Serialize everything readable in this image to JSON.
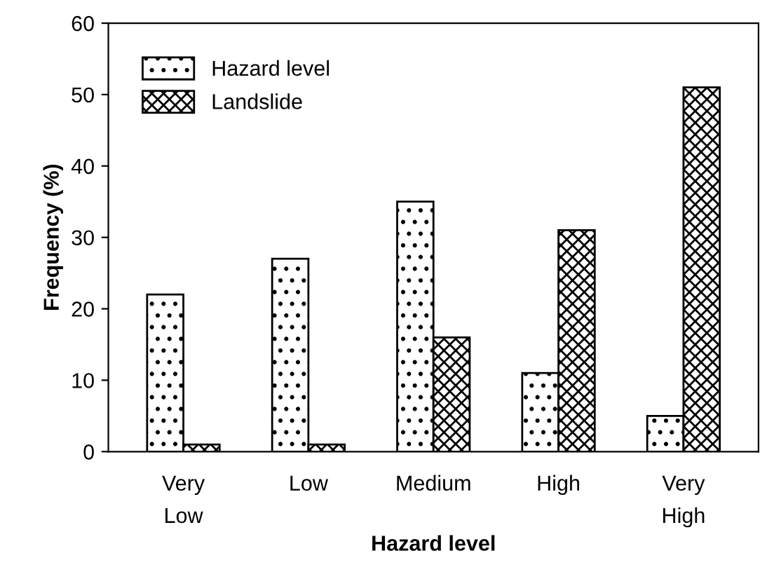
{
  "chart_data": {
    "type": "bar",
    "xlabel": "Hazard level",
    "ylabel": "Frequency (%)",
    "categories": [
      "Very\nLow",
      "Low",
      "Medium",
      "High",
      "Very\nHigh"
    ],
    "series": [
      {
        "name": "Hazard level",
        "color": "#000000",
        "values": [
          22,
          27,
          35,
          11,
          5
        ]
      },
      {
        "name": "Landslide",
        "color": "#000000",
        "values": [
          1,
          1,
          16,
          31,
          51
        ]
      }
    ],
    "ylim": [
      0,
      60
    ],
    "yticks": [
      0,
      10,
      20,
      30,
      40,
      50,
      60
    ],
    "grid": false,
    "legend": "top left"
  }
}
